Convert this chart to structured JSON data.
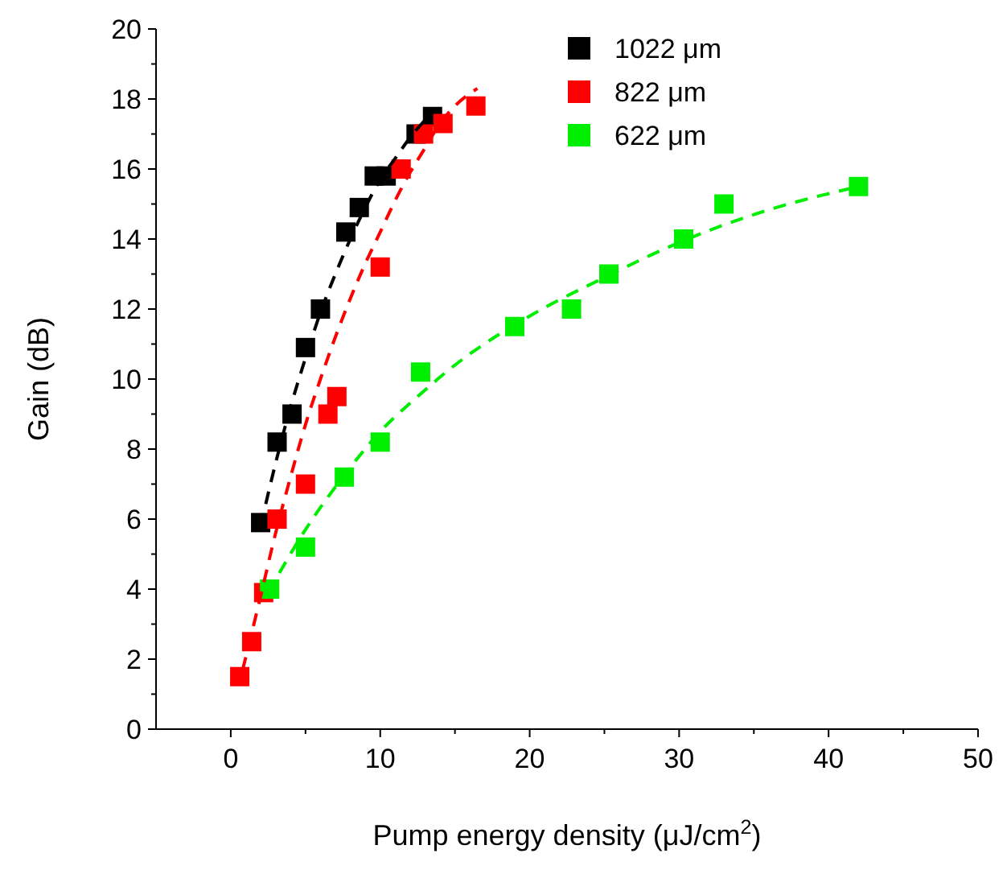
{
  "chart_data": {
    "type": "scatter",
    "xlabel": "Pump energy density (μJ/cm$^{2}$)",
    "ylabel": "Gain (dB)",
    "xlim": [
      -5,
      50
    ],
    "ylim": [
      0,
      20
    ],
    "xticks": [
      0,
      10,
      20,
      30,
      40,
      50
    ],
    "yticks": [
      0,
      2,
      4,
      6,
      8,
      10,
      12,
      14,
      16,
      18,
      20
    ],
    "grid": false,
    "legend": "top right",
    "marker": "square",
    "series": [
      {
        "name": "1022 μm",
        "color": "#000000",
        "x": [
          2,
          3.1,
          4.1,
          5,
          6,
          7.7,
          8.6,
          9.6,
          10.4,
          12.4,
          13.5
        ],
        "values": [
          5.9,
          8.2,
          9,
          10.9,
          12,
          14.2,
          14.9,
          15.8,
          15.8,
          17,
          17.5
        ]
      },
      {
        "name": "822 μm",
        "color": "#ff0000",
        "x": [
          0.6,
          1.4,
          2.2,
          3.1,
          5,
          6.5,
          7.1,
          10,
          11.4,
          12.9,
          14.2,
          16.4
        ],
        "values": [
          1.5,
          2.5,
          3.9,
          6,
          7,
          9,
          9.5,
          13.2,
          16,
          17,
          17.3,
          17.8
        ]
      },
      {
        "name": "622 μm",
        "color": "#00ee00",
        "x": [
          2.6,
          5,
          7.6,
          10,
          12.7,
          19,
          22.8,
          25.3,
          30.3,
          33,
          42
        ],
        "values": [
          4,
          5.2,
          7.2,
          8.2,
          10.2,
          11.5,
          12,
          13,
          14,
          15,
          15.5
        ]
      },
      {
        "type": "line",
        "line_style": "dashed",
        "marker": "none",
        "color": "#000000",
        "x": [
          2,
          3,
          4,
          5,
          6,
          7,
          8,
          9,
          10,
          11,
          12,
          13
        ],
        "values": [
          5.8,
          7.6,
          9.2,
          10.6,
          11.9,
          13,
          14,
          14.9,
          15.7,
          16.3,
          16.9,
          17.4
        ]
      },
      {
        "type": "line",
        "line_style": "dashed",
        "marker": "none",
        "color": "#ff0000",
        "x": [
          0.8,
          2,
          3,
          4,
          5,
          6,
          7,
          8,
          9,
          10,
          11,
          12,
          13,
          14,
          15,
          16.5
        ],
        "values": [
          1.7,
          3.8,
          5.6,
          7.2,
          8.7,
          10,
          11.2,
          12.3,
          13.3,
          14.2,
          15.1,
          15.9,
          16.6,
          17.3,
          17.8,
          18.3
        ]
      },
      {
        "type": "line",
        "line_style": "dashed",
        "marker": "none",
        "color": "#00ee00",
        "x": [
          2.5,
          5,
          7.5,
          10,
          12.5,
          15,
          20,
          25,
          30,
          35,
          42
        ],
        "values": [
          3.9,
          5.7,
          7.2,
          8.5,
          9.5,
          10.4,
          11.8,
          12.9,
          13.9,
          14.7,
          15.5
        ]
      }
    ]
  }
}
